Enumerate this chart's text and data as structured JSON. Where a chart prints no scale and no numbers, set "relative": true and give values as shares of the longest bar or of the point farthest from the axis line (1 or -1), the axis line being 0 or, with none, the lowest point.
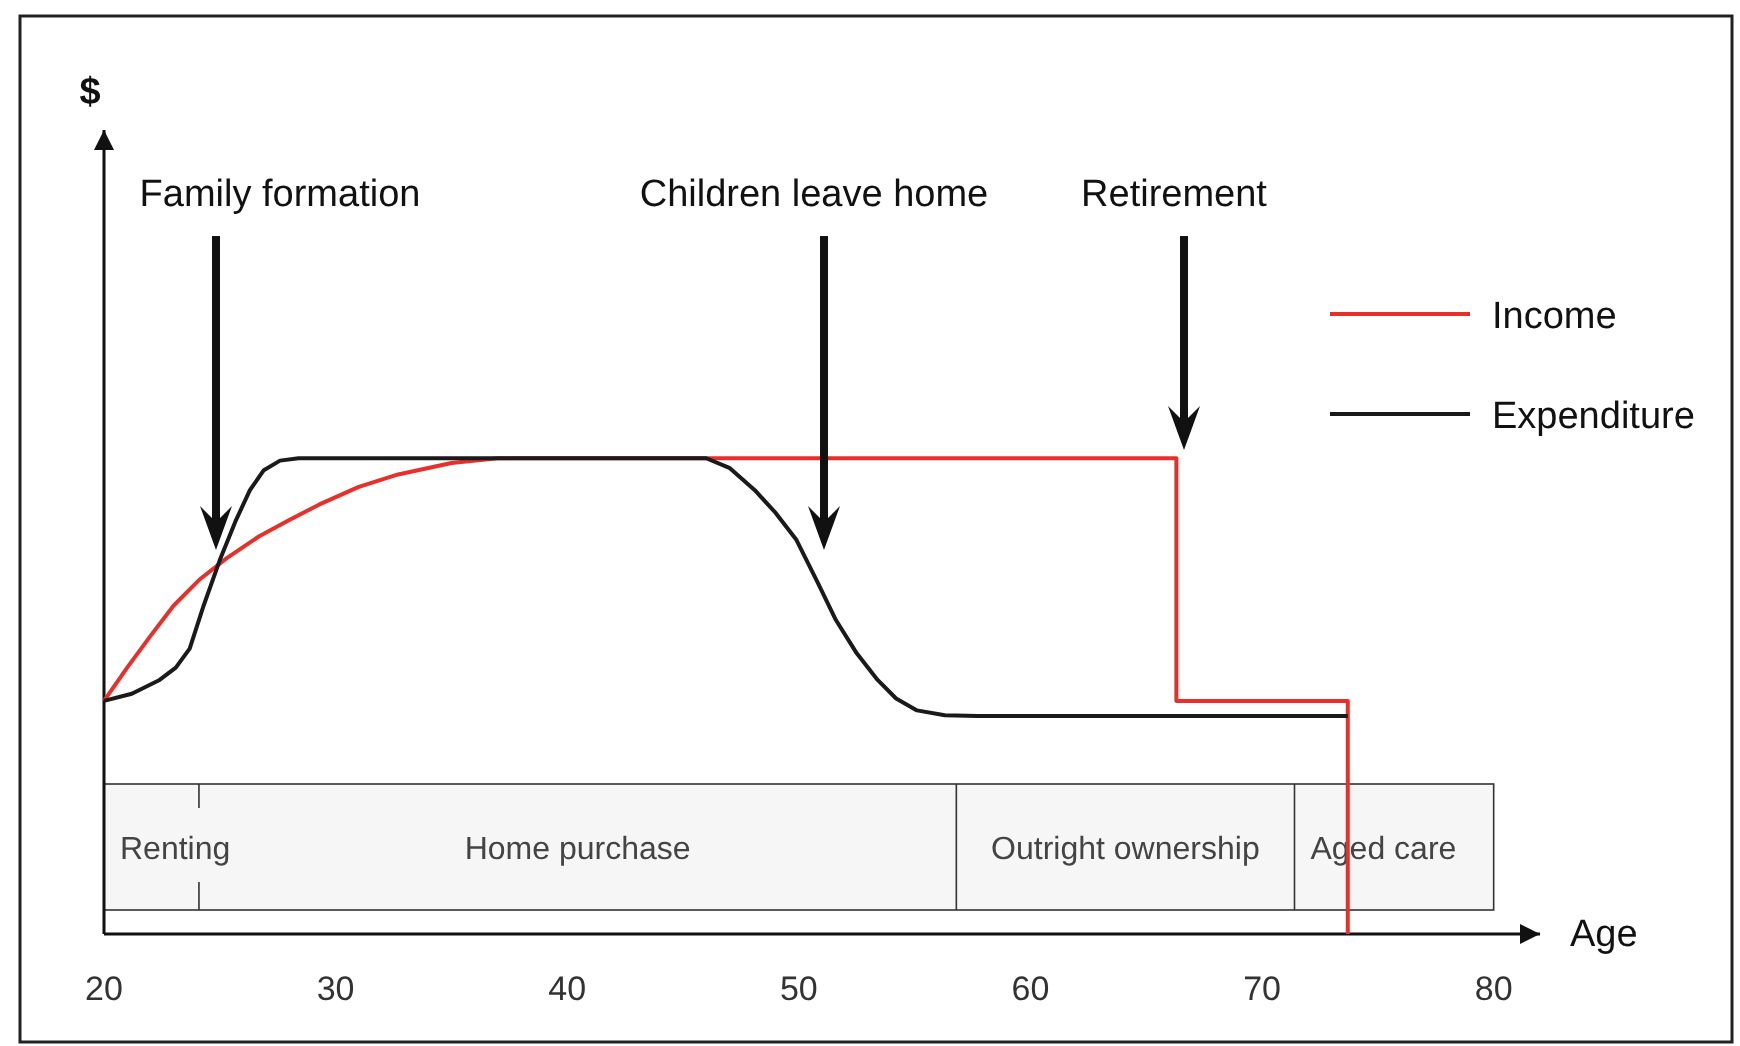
{
  "chart_data": {
    "type": "line",
    "relative": true,
    "xlabel": "Age",
    "xlim": [
      20,
      82
    ],
    "xticks": [
      20,
      30,
      40,
      50,
      60,
      70,
      80
    ],
    "legend": "top right",
    "series": [
      {
        "name": "Income",
        "color": "#e8302a",
        "x": [
          20,
          21,
          22,
          23,
          24.1,
          25.3,
          26.7,
          28,
          29.3,
          31,
          32.7,
          35,
          37,
          66.3,
          66.3,
          73.7,
          73.7
        ],
        "values": [
          0.49,
          0.56,
          0.626,
          0.69,
          0.744,
          0.79,
          0.836,
          0.87,
          0.903,
          0.94,
          0.966,
          0.99,
          1,
          1,
          0.49,
          0.49,
          0
        ]
      },
      {
        "name": "Expenditure",
        "color": "#1a1a1a",
        "x": [
          20,
          21.2,
          22.4,
          23.1,
          23.7,
          24.3,
          25,
          25.7,
          26.3,
          26.9,
          27.6,
          28.4,
          46,
          47,
          48.1,
          49,
          49.9,
          50.8,
          51.6,
          52.5,
          53.4,
          54.2,
          55.1,
          56.3,
          57.7,
          73.7
        ],
        "values": [
          0.49,
          0.505,
          0.534,
          0.56,
          0.6,
          0.69,
          0.786,
          0.87,
          0.933,
          0.975,
          0.995,
          1,
          1,
          0.98,
          0.933,
          0.885,
          0.828,
          0.74,
          0.66,
          0.59,
          0.534,
          0.495,
          0.47,
          0.46,
          0.458,
          0.458
        ]
      }
    ],
    "bands": [
      {
        "axis": "x",
        "from": 20,
        "to": 24.1,
        "label": "Renting",
        "color": "#f6f6f6"
      },
      {
        "axis": "x",
        "from": 24.1,
        "to": 56.8,
        "label": "Home purchase",
        "color": "#f6f6f6"
      },
      {
        "axis": "x",
        "from": 56.8,
        "to": 71.4,
        "label": "Outright ownership",
        "color": "#f6f6f6"
      },
      {
        "axis": "x",
        "from": 71.4,
        "to": 80,
        "label": "Aged care",
        "color": "#f6f6f6"
      }
    ],
    "annotations": [
      "$",
      "Family formation",
      "Children leave home",
      "Retirement"
    ]
  }
}
